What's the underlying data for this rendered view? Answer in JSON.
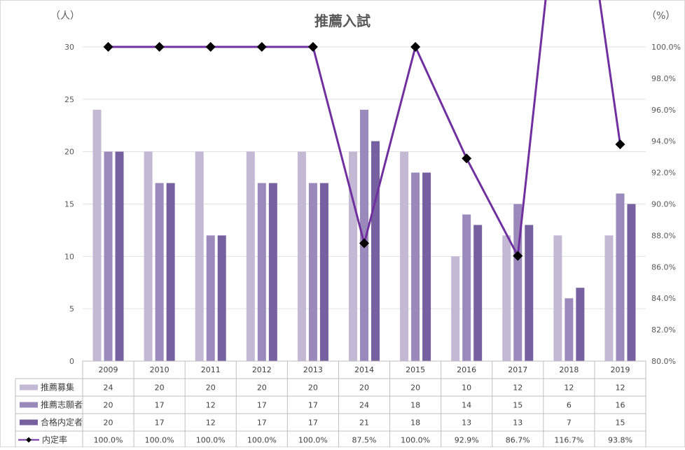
{
  "chart_data": {
    "type": "bar",
    "title": "推薦入試",
    "y_left_unit": "（人）",
    "y_right_unit": "（%）",
    "categories": [
      "2009",
      "2010",
      "2011",
      "2012",
      "2013",
      "2014",
      "2015",
      "2016",
      "2017",
      "2018",
      "2019"
    ],
    "ylim_left": [
      0,
      30
    ],
    "ylim_right": [
      80.0,
      100.0
    ],
    "y_left_ticks": [
      "0",
      "5",
      "10",
      "15",
      "20",
      "25",
      "30"
    ],
    "y_right_ticks": [
      "80.0%",
      "82.0%",
      "84.0%",
      "86.0%",
      "88.0%",
      "90.0%",
      "92.0%",
      "94.0%",
      "96.0%",
      "98.0%",
      "100.0%"
    ],
    "grid": true,
    "legend_position": "table-below",
    "series": [
      {
        "name": "推薦募集",
        "type": "bar",
        "axis": "left",
        "color": "#c4b9d4",
        "values": [
          24,
          20,
          20,
          20,
          20,
          20,
          20,
          10,
          12,
          12,
          12
        ]
      },
      {
        "name": "推薦志願者",
        "type": "bar",
        "axis": "left",
        "color": "#9b89bb",
        "values": [
          20,
          17,
          12,
          17,
          17,
          24,
          18,
          14,
          15,
          6,
          16
        ]
      },
      {
        "name": "合格内定者",
        "type": "bar",
        "axis": "left",
        "color": "#77609f",
        "values": [
          20,
          17,
          12,
          17,
          17,
          21,
          18,
          13,
          13,
          7,
          15
        ]
      },
      {
        "name": "内定率",
        "type": "line",
        "axis": "right",
        "color": "#7030a0",
        "values": [
          100.0,
          100.0,
          100.0,
          100.0,
          100.0,
          87.5,
          100.0,
          92.9,
          86.7,
          116.7,
          93.8
        ],
        "labels": [
          "100.0%",
          "100.0%",
          "100.0%",
          "100.0%",
          "100.0%",
          "87.5%",
          "100.0%",
          "92.9%",
          "86.7%",
          "116.7%",
          "93.8%"
        ]
      }
    ]
  }
}
